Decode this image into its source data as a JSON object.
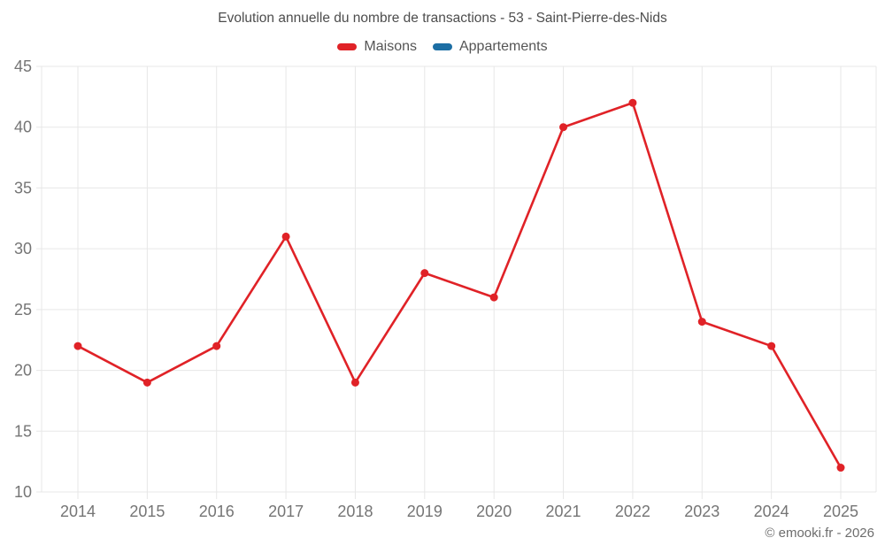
{
  "chart": {
    "title": "Evolution annuelle du nombre de transactions - 53 - Saint-Pierre-des-Nids",
    "legend": [
      {
        "label": "Maisons",
        "color": "#e02227"
      },
      {
        "label": "Appartements",
        "color": "#1c6ea4"
      }
    ]
  },
  "chart_data": {
    "type": "line",
    "title": "Evolution annuelle du nombre de transactions - 53 - Saint-Pierre-des-Nids",
    "x": [
      2014,
      2015,
      2016,
      2017,
      2018,
      2019,
      2020,
      2021,
      2022,
      2023,
      2024,
      2025
    ],
    "series": [
      {
        "name": "Maisons",
        "color": "#e02227",
        "values": [
          22,
          19,
          22,
          31,
          19,
          28,
          26,
          40,
          42,
          24,
          22,
          12
        ]
      },
      {
        "name": "Appartements",
        "color": "#1c6ea4",
        "values": []
      }
    ],
    "xlabel": "",
    "ylabel": "",
    "ylim": [
      10,
      45
    ],
    "ytick_step": 5,
    "grid": true,
    "grid_color": "#e7e7e7",
    "tick_color": "#757575",
    "legend_position": "top"
  },
  "footer": {
    "copyright": "© emooki.fr - 2026"
  }
}
